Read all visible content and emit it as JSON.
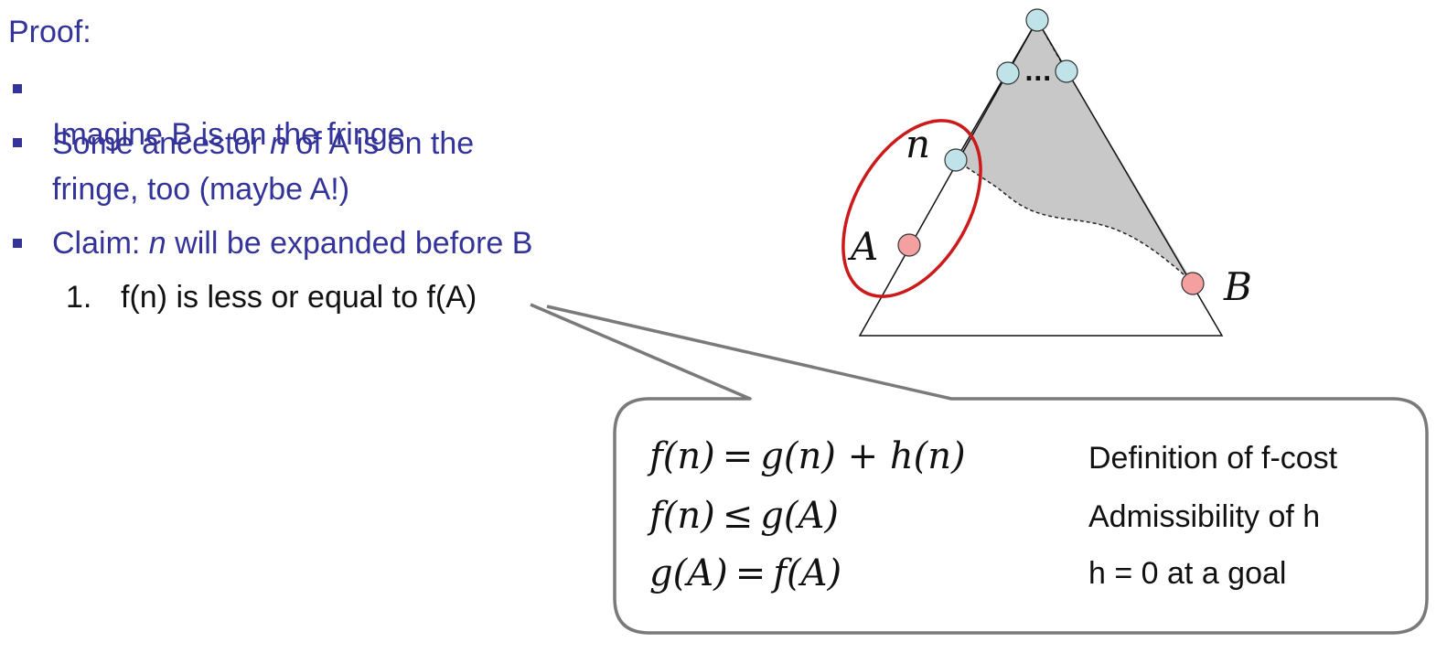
{
  "heading": "Proof:",
  "bullets": [
    {
      "pre": "Imagine B is on the fringe",
      "em": "",
      "post": ""
    },
    {
      "pre": "Some ancestor ",
      "em": "n",
      "post": " of A is on the\nfringe, too (maybe A!)"
    },
    {
      "pre": "Claim: ",
      "em": "n",
      "post": " will be expanded before B"
    }
  ],
  "numbered": {
    "number": "1.",
    "text": "f(n) is less or equal to f(A)"
  },
  "diagram_labels": {
    "n": "n",
    "A": "A",
    "B": "B",
    "dots": "..."
  },
  "equations": [
    {
      "lhs": "f(n)",
      "op": "=",
      "rhs": "g(n) + h(n)",
      "reason": "Definition of f-cost"
    },
    {
      "lhs": "f(n)",
      "op": "≤",
      "rhs": "g(A)",
      "reason": "Admissibility of h"
    },
    {
      "lhs": "g(A)",
      "op": "=",
      "rhs": "f(A)",
      "reason": "h = 0 at a goal"
    }
  ],
  "colors": {
    "text_blue": "#33339a",
    "node_blue": "#bfe3e8",
    "node_red": "#f4a0a0",
    "ellipse_red": "#cc1a1a",
    "shade_gray": "#c8c8c8"
  }
}
